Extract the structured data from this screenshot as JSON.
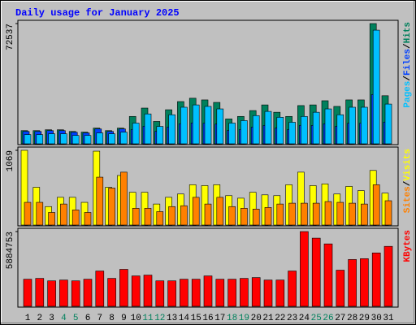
{
  "title": "Daily usage for January 2025",
  "legend_separator": "/",
  "chart_data": [
    {
      "type": "bar",
      "legend_position": "right",
      "ylim": [
        0,
        72537
      ],
      "yticks": [
        72537
      ],
      "series": [
        {
          "name": "Hits",
          "color": "#00805C",
          "values": [
            8400,
            8400,
            8900,
            8900,
            7900,
            7500,
            9900,
            8400,
            9900,
            16900,
            21900,
            13900,
            20900,
            25800,
            27800,
            26800,
            25300,
            15400,
            16900,
            20400,
            23800,
            19400,
            16900,
            23400,
            23800,
            26300,
            22900,
            26800,
            26800,
            72537,
            29300
          ]
        },
        {
          "name": "Files",
          "color": "#0040FF",
          "values": [
            7900,
            7900,
            8400,
            8400,
            7400,
            7000,
            9400,
            7900,
            9400,
            9000,
            11000,
            8000,
            10500,
            12500,
            13000,
            12800,
            12300,
            8500,
            9000,
            10500,
            11500,
            10000,
            9000,
            11500,
            11500,
            12500,
            11000,
            12800,
            12800,
            30000,
            13500
          ]
        },
        {
          "name": "Pages",
          "color": "#00C0FF",
          "values": [
            6000,
            6000,
            6500,
            6500,
            5500,
            5500,
            7000,
            6500,
            7500,
            12900,
            18400,
            10900,
            17900,
            22400,
            23800,
            22900,
            21400,
            12900,
            14400,
            17400,
            19900,
            16400,
            13400,
            16900,
            19400,
            21400,
            17900,
            22400,
            22400,
            68600,
            24300
          ]
        }
      ]
    },
    {
      "type": "bar",
      "legend_position": "right",
      "ylim": [
        0,
        1069
      ],
      "yticks": [
        1069
      ],
      "series": [
        {
          "name": "Visits",
          "color": "#FFFF00",
          "values": [
            1069,
            546,
            273,
            404,
            404,
            333,
            1057,
            546,
            713,
            475,
            475,
            309,
            404,
            451,
            582,
            570,
            582,
            428,
            392,
            475,
            439,
            428,
            582,
            760,
            570,
            594,
            451,
            558,
            499,
            784,
            463
          ]
        },
        {
          "name": "Sites",
          "color": "#FF8000",
          "values": [
            333,
            333,
            190,
            309,
            226,
            190,
            689,
            535,
            760,
            249,
            249,
            202,
            273,
            285,
            404,
            309,
            404,
            273,
            249,
            238,
            261,
            309,
            321,
            321,
            321,
            344,
            333,
            321,
            309,
            582,
            356
          ]
        }
      ]
    },
    {
      "type": "bar",
      "legend_position": "right",
      "ylim": [
        0,
        5884753
      ],
      "yticks": [
        5884753
      ],
      "categories": [
        "1",
        "2",
        "3",
        "4",
        "5",
        "6",
        "7",
        "8",
        "9",
        "10",
        "11",
        "12",
        "13",
        "14",
        "15",
        "16",
        "17",
        "18",
        "19",
        "20",
        "21",
        "22",
        "23",
        "24",
        "25",
        "26",
        "27",
        "28",
        "29",
        "30",
        "31"
      ],
      "category_colors": [
        "#000000",
        "#000000",
        "#000000",
        "#00805C",
        "#00805C",
        "#000000",
        "#000000",
        "#000000",
        "#000000",
        "#000000",
        "#00805C",
        "#00805C",
        "#000000",
        "#000000",
        "#000000",
        "#000000",
        "#000000",
        "#00805C",
        "#00805C",
        "#000000",
        "#000000",
        "#000000",
        "#000000",
        "#000000",
        "#00805C",
        "#00805C",
        "#000000",
        "#000000",
        "#000000",
        "#000000",
        "#000000"
      ],
      "series": [
        {
          "name": "KBytes",
          "color": "#FF0000",
          "values": [
            2175000,
            2239000,
            2047000,
            2111000,
            2047000,
            2175000,
            2814000,
            2239000,
            2942000,
            2431000,
            2495000,
            2047000,
            2047000,
            2175000,
            2175000,
            2431000,
            2175000,
            2175000,
            2239000,
            2303000,
            2111000,
            2111000,
            2814000,
            5884753,
            5373000,
            4925000,
            2878000,
            3710000,
            3774000,
            4222000,
            4733000
          ]
        }
      ]
    }
  ]
}
